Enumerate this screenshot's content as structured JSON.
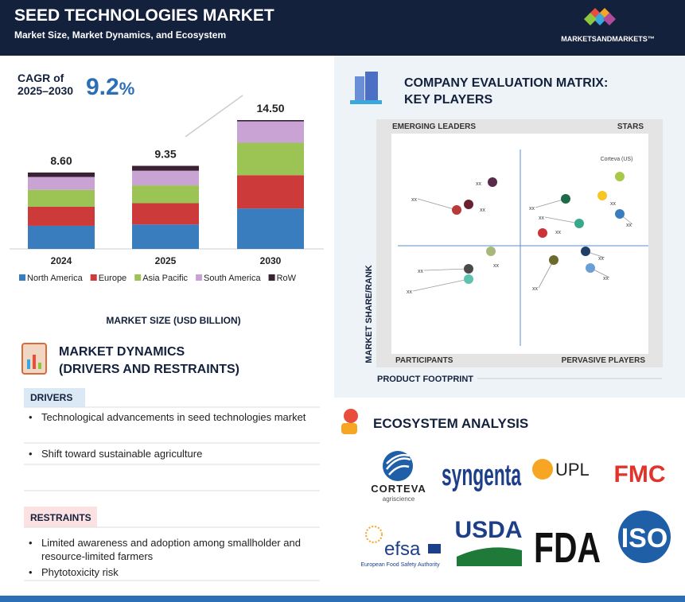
{
  "header": {
    "title": "SEED TECHNOLOGIES MARKET",
    "subtitle": "Market Size, Market Dynamics, and Ecosystem",
    "brand": "MARKETSANDMARKETS™"
  },
  "chart_data": {
    "type": "bar",
    "stacked": true,
    "cagr_label": "CAGR of",
    "cagr_period": "2025–2030",
    "cagr_value": "9.2",
    "cagr_unit": "%",
    "categories": [
      "2024",
      "2025",
      "2030"
    ],
    "series": [
      {
        "name": "North America",
        "color": "#3a7dbf",
        "values": [
          2.6,
          2.75,
          4.55
        ]
      },
      {
        "name": "Europe",
        "color": "#cc3a3a",
        "values": [
          2.15,
          2.4,
          3.75
        ]
      },
      {
        "name": "Asia Pacific",
        "color": "#9cc455",
        "values": [
          1.9,
          2.0,
          3.65
        ]
      },
      {
        "name": "South America",
        "color": "#c9a3d4",
        "values": [
          1.45,
          1.65,
          2.4
        ]
      },
      {
        "name": "RoW",
        "color": "#3a2233",
        "values": [
          0.5,
          0.55,
          0.15
        ]
      }
    ],
    "totals": {
      "values": [
        8.6,
        9.35,
        14.5
      ],
      "value_labels": [
        "8.60",
        "9.35",
        "14.50"
      ]
    },
    "axis_label": "MARKET SIZE (USD BILLION)"
  },
  "matrix": {
    "title_line1": "COMPANY EVALUATION MATRIX:",
    "title_line2": "KEY PLAYERS",
    "quadrants": [
      "EMERGING LEADERS",
      "STARS",
      "PARTICIPANTS",
      "PERVASIVE PLAYERS"
    ],
    "y_axis_label": "MARKET SHARE/RANK",
    "x_axis_label": "PRODUCT FOOTPRINT",
    "points": [
      "xx",
      "xx",
      "xx",
      "xx",
      "xx",
      "xx",
      "xx",
      "xx",
      "xx",
      "Corteva (US)",
      "xx",
      "xx",
      "xx",
      "xx",
      "xx"
    ]
  },
  "dynamics": {
    "title_line1": "MARKET DYNAMICS",
    "title_line2": "(DRIVERS AND RESTRAINTS)",
    "drivers_heading": "DRIVERS",
    "drivers": [
      "Technological advancements in seed technologies market",
      "Shift toward sustainable agriculture"
    ],
    "restraints_heading": "RESTRAINTS",
    "restraints": [
      "Limited awareness and adoption among smallholder and resource-limited farmers",
      "Phytotoxicity risk"
    ]
  },
  "ecosystem": {
    "title": "ECOSYSTEM ANALYSIS",
    "logos": {
      "corteva": "CORTEVA",
      "corteva_sub": "agriscience",
      "syngenta": "syngenta",
      "upl": "UPL",
      "fmc": "FMC",
      "efsa": "efsa",
      "efsa_sub": "European Food Safety Authority",
      "usda": "USDA",
      "fda": "FDA",
      "iso": "ISO"
    }
  }
}
